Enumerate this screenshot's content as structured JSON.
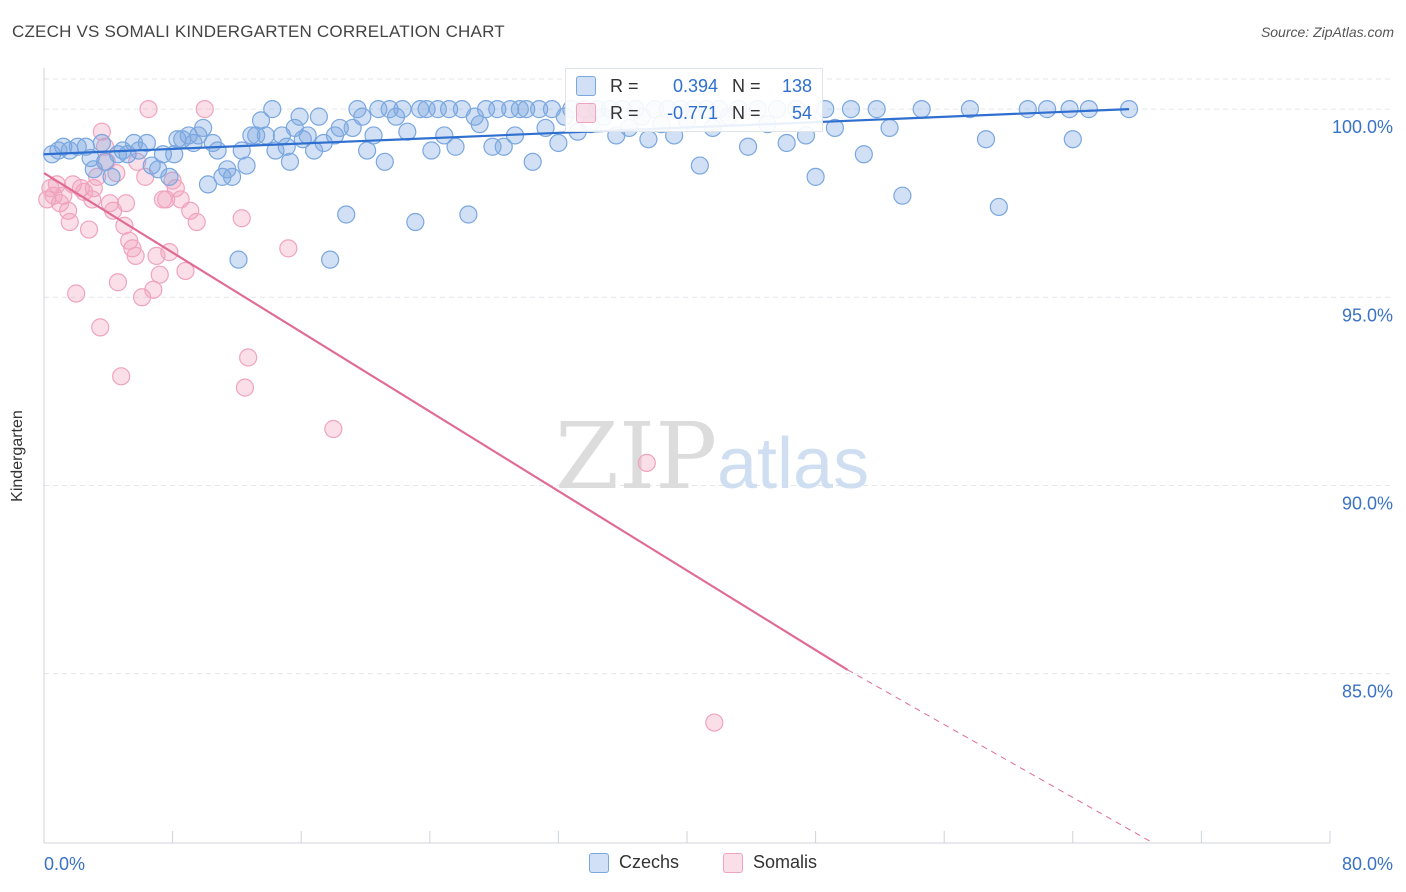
{
  "header": {
    "title": "CZECH VS SOMALI KINDERGARTEN CORRELATION CHART",
    "source": "Source: ZipAtlas.com"
  },
  "watermark": {
    "zip": "ZIP",
    "atlas": "atlas"
  },
  "colors": {
    "blue": "#7aa7e0",
    "blue_line": "#2f6fcf",
    "pink": "#f0a3bd",
    "pink_line": "#e06b93",
    "axis_text": "#3a72c4",
    "grid": "#e3e6ea"
  },
  "stats": {
    "rows": [
      {
        "series": "Czechs",
        "r_label": "R =",
        "r_value": "0.394",
        "n_label": "N =",
        "n_value": "138"
      },
      {
        "series": "Somalis",
        "r_label": "R =",
        "r_value": "-0.771",
        "n_label": "N =",
        "n_value": "54"
      }
    ]
  },
  "legend": {
    "items": [
      "Czechs",
      "Somalis"
    ]
  },
  "chart_data": {
    "type": "scatter",
    "title": "CZECH VS SOMALI KINDERGARTEN CORRELATION CHART",
    "xlabel": "",
    "ylabel": "Kindergarten",
    "xlim": [
      0,
      80
    ],
    "ylim": [
      80.5,
      100.8
    ],
    "x_tick_labels": [
      "0.0%",
      "80.0%"
    ],
    "y_ticks": [
      85,
      90,
      95,
      100
    ],
    "y_tick_labels": [
      "85.0%",
      "90.0%",
      "95.0%",
      "100.0%"
    ],
    "grid": true,
    "legend_position": "bottom-center",
    "series": [
      {
        "name": "Czechs",
        "color": "#7aa7e0",
        "trend": {
          "x": [
            0,
            67.5
          ],
          "y": [
            98.8,
            100.0
          ],
          "style": "solid"
        },
        "points": [
          [
            0.5,
            98.8
          ],
          [
            0.9,
            98.9
          ],
          [
            1.2,
            99.0
          ],
          [
            1.6,
            98.9
          ],
          [
            2.1,
            99.0
          ],
          [
            2.6,
            99.0
          ],
          [
            2.9,
            98.7
          ],
          [
            3.1,
            98.4
          ],
          [
            3.6,
            99.1
          ],
          [
            3.8,
            98.6
          ],
          [
            4.2,
            98.2
          ],
          [
            4.6,
            98.8
          ],
          [
            4.9,
            98.9
          ],
          [
            5.2,
            98.8
          ],
          [
            5.6,
            99.1
          ],
          [
            5.9,
            98.9
          ],
          [
            6.4,
            99.1
          ],
          [
            6.7,
            98.5
          ],
          [
            7.1,
            98.4
          ],
          [
            7.4,
            98.8
          ],
          [
            7.8,
            98.2
          ],
          [
            8.1,
            98.8
          ],
          [
            8.3,
            99.2
          ],
          [
            8.6,
            99.2
          ],
          [
            9.0,
            99.3
          ],
          [
            9.3,
            99.1
          ],
          [
            9.6,
            99.3
          ],
          [
            9.9,
            99.5
          ],
          [
            10.2,
            98.0
          ],
          [
            10.5,
            99.1
          ],
          [
            10.8,
            98.9
          ],
          [
            11.1,
            98.2
          ],
          [
            11.4,
            98.4
          ],
          [
            11.7,
            98.2
          ],
          [
            12.1,
            96.0
          ],
          [
            12.3,
            98.9
          ],
          [
            12.6,
            98.5
          ],
          [
            12.9,
            99.3
          ],
          [
            13.2,
            99.3
          ],
          [
            13.5,
            99.7
          ],
          [
            13.8,
            99.3
          ],
          [
            14.2,
            100.0
          ],
          [
            14.4,
            98.9
          ],
          [
            14.8,
            99.3
          ],
          [
            15.1,
            99.0
          ],
          [
            15.3,
            98.6
          ],
          [
            15.6,
            99.5
          ],
          [
            15.9,
            99.8
          ],
          [
            16.1,
            99.2
          ],
          [
            16.4,
            99.3
          ],
          [
            16.8,
            98.9
          ],
          [
            17.1,
            99.8
          ],
          [
            17.4,
            99.1
          ],
          [
            17.8,
            96.0
          ],
          [
            18.1,
            99.3
          ],
          [
            18.4,
            99.5
          ],
          [
            18.8,
            97.2
          ],
          [
            19.2,
            99.5
          ],
          [
            19.5,
            100.0
          ],
          [
            19.8,
            99.8
          ],
          [
            20.1,
            98.9
          ],
          [
            20.5,
            99.3
          ],
          [
            20.8,
            100.0
          ],
          [
            21.2,
            98.6
          ],
          [
            21.5,
            100.0
          ],
          [
            21.9,
            99.8
          ],
          [
            22.3,
            100.0
          ],
          [
            22.6,
            99.4
          ],
          [
            23.1,
            97.0
          ],
          [
            23.4,
            100.0
          ],
          [
            23.8,
            100.0
          ],
          [
            24.1,
            98.9
          ],
          [
            24.5,
            100.0
          ],
          [
            24.9,
            99.3
          ],
          [
            25.2,
            100.0
          ],
          [
            25.6,
            99.0
          ],
          [
            26.0,
            100.0
          ],
          [
            26.4,
            97.2
          ],
          [
            26.8,
            99.8
          ],
          [
            27.1,
            99.6
          ],
          [
            27.5,
            100.0
          ],
          [
            27.9,
            99.0
          ],
          [
            28.2,
            100.0
          ],
          [
            28.6,
            99.0
          ],
          [
            29.0,
            100.0
          ],
          [
            29.3,
            99.3
          ],
          [
            29.6,
            100.0
          ],
          [
            30.0,
            100.0
          ],
          [
            30.4,
            98.6
          ],
          [
            30.8,
            100.0
          ],
          [
            31.2,
            99.5
          ],
          [
            31.6,
            100.0
          ],
          [
            32.0,
            99.1
          ],
          [
            32.4,
            99.8
          ],
          [
            32.8,
            100.0
          ],
          [
            33.2,
            99.4
          ],
          [
            33.6,
            100.0
          ],
          [
            34.0,
            99.6
          ],
          [
            34.4,
            100.0
          ],
          [
            34.8,
            99.8
          ],
          [
            35.2,
            100.0
          ],
          [
            35.6,
            99.3
          ],
          [
            36.0,
            100.0
          ],
          [
            36.4,
            99.5
          ],
          [
            36.8,
            100.0
          ],
          [
            37.2,
            99.8
          ],
          [
            37.6,
            99.2
          ],
          [
            38.0,
            100.0
          ],
          [
            38.4,
            99.6
          ],
          [
            38.8,
            100.0
          ],
          [
            39.2,
            99.3
          ],
          [
            39.6,
            100.0
          ],
          [
            40.0,
            99.7
          ],
          [
            40.4,
            100.0
          ],
          [
            40.8,
            98.5
          ],
          [
            41.2,
            100.0
          ],
          [
            41.6,
            99.5
          ],
          [
            42.0,
            100.0
          ],
          [
            42.6,
            99.8
          ],
          [
            43.2,
            100.0
          ],
          [
            43.8,
            99.0
          ],
          [
            44.4,
            100.0
          ],
          [
            45.0,
            99.6
          ],
          [
            45.6,
            100.0
          ],
          [
            46.2,
            99.1
          ],
          [
            46.8,
            100.0
          ],
          [
            47.4,
            99.3
          ],
          [
            48.0,
            98.2
          ],
          [
            48.6,
            100.0
          ],
          [
            49.2,
            99.5
          ],
          [
            50.2,
            100.0
          ],
          [
            51.0,
            98.8
          ],
          [
            51.8,
            100.0
          ],
          [
            52.6,
            99.5
          ],
          [
            53.4,
            97.7
          ],
          [
            54.6,
            100.0
          ],
          [
            57.6,
            100.0
          ],
          [
            58.6,
            99.2
          ],
          [
            59.4,
            97.4
          ],
          [
            61.2,
            100.0
          ],
          [
            62.4,
            100.0
          ],
          [
            63.8,
            100.0
          ],
          [
            64.0,
            99.2
          ],
          [
            65.0,
            100.0
          ],
          [
            67.5,
            100.0
          ]
        ]
      },
      {
        "name": "Somalis",
        "color": "#f0a3bd",
        "trend": {
          "x": [
            0,
            50.0
          ],
          "y": [
            98.3,
            85.1
          ],
          "style": "solid"
        },
        "trend_extension": {
          "x": [
            50.0,
            69.0
          ],
          "y": [
            85.1,
            80.5
          ],
          "style": "dashed"
        },
        "points": [
          [
            0.2,
            97.6
          ],
          [
            0.4,
            97.9
          ],
          [
            0.6,
            97.7
          ],
          [
            0.8,
            98.0
          ],
          [
            1.0,
            97.5
          ],
          [
            1.2,
            97.7
          ],
          [
            1.5,
            97.3
          ],
          [
            1.6,
            97.0
          ],
          [
            1.8,
            98.0
          ],
          [
            2.0,
            95.1
          ],
          [
            2.3,
            97.9
          ],
          [
            2.5,
            97.8
          ],
          [
            2.8,
            96.8
          ],
          [
            3.0,
            97.6
          ],
          [
            3.1,
            97.9
          ],
          [
            3.3,
            98.2
          ],
          [
            3.5,
            94.2
          ],
          [
            3.6,
            99.4
          ],
          [
            3.8,
            99.0
          ],
          [
            3.9,
            98.6
          ],
          [
            4.1,
            97.5
          ],
          [
            4.3,
            97.3
          ],
          [
            4.5,
            98.3
          ],
          [
            4.6,
            95.4
          ],
          [
            4.8,
            92.9
          ],
          [
            5.0,
            96.9
          ],
          [
            5.1,
            97.5
          ],
          [
            5.3,
            96.5
          ],
          [
            5.5,
            96.3
          ],
          [
            5.7,
            96.1
          ],
          [
            5.8,
            98.6
          ],
          [
            6.1,
            95.0
          ],
          [
            6.3,
            98.2
          ],
          [
            6.5,
            100.0
          ],
          [
            6.8,
            95.2
          ],
          [
            7.0,
            96.1
          ],
          [
            7.2,
            95.6
          ],
          [
            7.4,
            97.6
          ],
          [
            7.6,
            97.6
          ],
          [
            7.8,
            96.2
          ],
          [
            8.0,
            98.1
          ],
          [
            8.2,
            97.9
          ],
          [
            8.5,
            97.6
          ],
          [
            8.8,
            95.7
          ],
          [
            9.1,
            97.3
          ],
          [
            9.5,
            97.0
          ],
          [
            10.0,
            100.0
          ],
          [
            12.3,
            97.1
          ],
          [
            12.5,
            92.6
          ],
          [
            12.7,
            93.4
          ],
          [
            15.2,
            96.3
          ],
          [
            18.0,
            91.5
          ],
          [
            37.5,
            90.6
          ],
          [
            41.7,
            83.7
          ]
        ]
      }
    ]
  }
}
